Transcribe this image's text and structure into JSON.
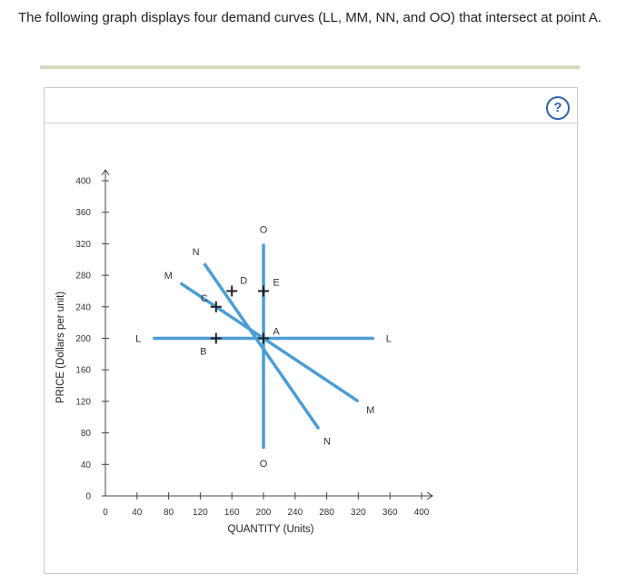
{
  "question": "The following graph displays four demand curves (LL, MM, NN, and OO) that intersect at point A.",
  "help": {
    "label": "?",
    "icon": "question-icon",
    "color": "#2f63b3"
  },
  "chart_data": {
    "type": "line",
    "xlabel": "QUANTITY (Units)",
    "ylabel": "PRICE (Dollars per unit)",
    "xlim": [
      0,
      400
    ],
    "ylim": [
      0,
      400
    ],
    "xticks": [
      0,
      40,
      80,
      120,
      160,
      200,
      240,
      280,
      320,
      360,
      400
    ],
    "yticks": [
      0,
      40,
      80,
      120,
      160,
      200,
      240,
      280,
      320,
      360,
      400
    ],
    "line_color": "#4a9ed6",
    "series": [
      {
        "name": "L",
        "points": [
          [
            60,
            200
          ],
          [
            340,
            200
          ]
        ],
        "labels": [
          "L",
          "L"
        ]
      },
      {
        "name": "M",
        "points": [
          [
            95,
            270
          ],
          [
            320,
            120
          ]
        ],
        "labels": [
          "M",
          "M"
        ]
      },
      {
        "name": "N",
        "points": [
          [
            125,
            295
          ],
          [
            270,
            85
          ]
        ],
        "labels": [
          "N",
          "N"
        ]
      },
      {
        "name": "O",
        "points": [
          [
            200,
            320
          ],
          [
            200,
            60
          ]
        ],
        "labels": [
          "O",
          "O"
        ]
      }
    ],
    "points": [
      {
        "label": "A",
        "x": 200,
        "y": 200
      },
      {
        "label": "B",
        "x": 140,
        "y": 200
      },
      {
        "label": "C",
        "x": 140,
        "y": 240
      },
      {
        "label": "D",
        "x": 160,
        "y": 260
      },
      {
        "label": "E",
        "x": 200,
        "y": 260
      }
    ]
  }
}
